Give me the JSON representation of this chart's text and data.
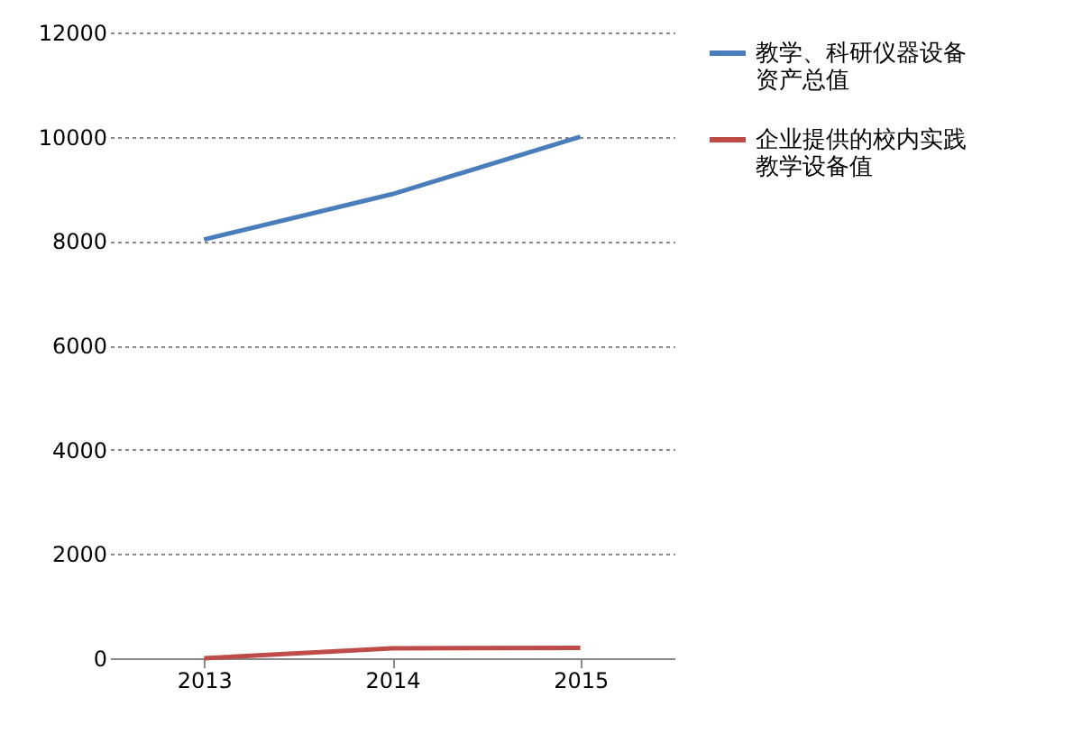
{
  "chart_data": {
    "type": "line",
    "categories": [
      "2013",
      "2014",
      "2015"
    ],
    "series": [
      {
        "name": "教学、科研仪器设备资产总值",
        "color": "#4a7ebb",
        "values": [
          8030,
          8900,
          10000
        ]
      },
      {
        "name": "企业提供的校内实践教学设备值",
        "color": "#be4b48",
        "values": [
          0,
          190,
          200
        ]
      }
    ],
    "ylim": [
      0,
      12000
    ],
    "yticks": [
      0,
      2000,
      4000,
      6000,
      8000,
      10000,
      12000
    ],
    "grid": "y",
    "legend": "right",
    "marker": "none",
    "line_style": "solid"
  }
}
